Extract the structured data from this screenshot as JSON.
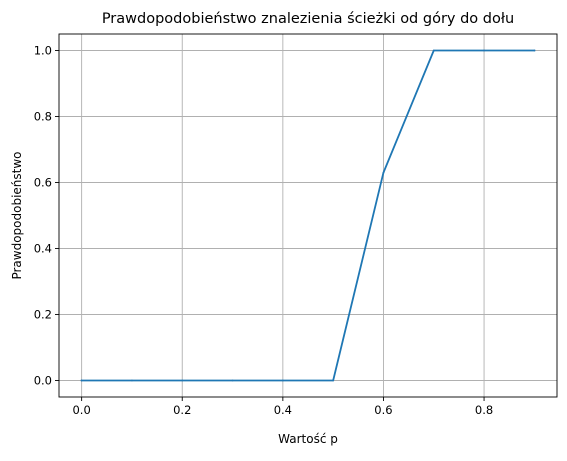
{
  "chart_data": {
    "type": "line",
    "title": "Prawdopodobieństwo znalezienia ścieżki od góry do dołu",
    "xlabel": "Wartość p",
    "ylabel": "Prawdopodobieństwo",
    "xlim": [
      -0.045,
      0.945
    ],
    "ylim": [
      -0.05,
      1.05
    ],
    "x_ticks": [
      0.0,
      0.2,
      0.4,
      0.6,
      0.8
    ],
    "x_tick_labels": [
      "0.0",
      "0.2",
      "0.4",
      "0.6",
      "0.8"
    ],
    "y_ticks": [
      0.0,
      0.2,
      0.4,
      0.6,
      0.8,
      1.0
    ],
    "y_tick_labels": [
      "0.0",
      "0.2",
      "0.4",
      "0.6",
      "0.8",
      "1.0"
    ],
    "grid": true,
    "series": [
      {
        "color": "#1f77b4",
        "x": [
          0.0,
          0.1,
          0.2,
          0.3,
          0.4,
          0.5,
          0.6,
          0.7,
          0.8,
          0.9
        ],
        "y": [
          0.0,
          0.0,
          0.0,
          0.0,
          0.0,
          0.0,
          0.63,
          1.0,
          1.0,
          1.0
        ]
      }
    ]
  }
}
